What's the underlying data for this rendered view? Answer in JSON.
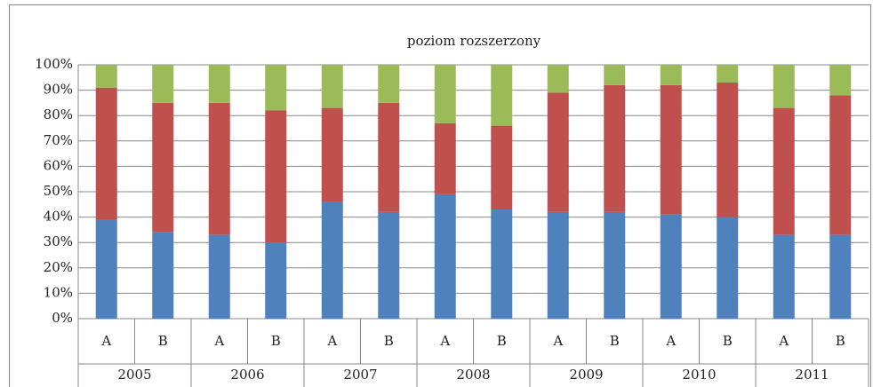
{
  "chart_data": {
    "type": "stacked_bar",
    "title": "poziom rozszerzony",
    "categories": [
      "A",
      "B",
      "A",
      "B",
      "A",
      "B",
      "A",
      "B",
      "A",
      "B",
      "A",
      "B",
      "A",
      "B"
    ],
    "groups": [
      "2005",
      "2006",
      "2007",
      "2008",
      "2009",
      "2010",
      "2011"
    ],
    "series": [
      {
        "color": "#4f81bd",
        "values": [
          39,
          34,
          33,
          30,
          46,
          42,
          49,
          43,
          42,
          42,
          41,
          40,
          33,
          33
        ]
      },
      {
        "color": "#c0504d",
        "values": [
          52,
          51,
          52,
          52,
          37,
          43,
          28,
          33,
          47,
          50,
          51,
          53,
          50,
          55
        ]
      },
      {
        "color": "#9bbb59",
        "values": [
          9,
          15,
          15,
          18,
          17,
          15,
          23,
          24,
          11,
          8,
          8,
          7,
          17,
          12
        ]
      }
    ],
    "ylim": [
      0,
      100
    ],
    "yticks": [
      {
        "value": 0,
        "label": "0%"
      },
      {
        "value": 10,
        "label": "10%"
      },
      {
        "value": 20,
        "label": "20%"
      },
      {
        "value": 30,
        "label": "30%"
      },
      {
        "value": 40,
        "label": "40%"
      },
      {
        "value": 50,
        "label": "50%"
      },
      {
        "value": 60,
        "label": "60%"
      },
      {
        "value": 70,
        "label": "70%"
      },
      {
        "value": 80,
        "label": "80%"
      },
      {
        "value": 90,
        "label": "90%"
      },
      {
        "value": 100,
        "label": "100%"
      }
    ],
    "grid": true
  }
}
